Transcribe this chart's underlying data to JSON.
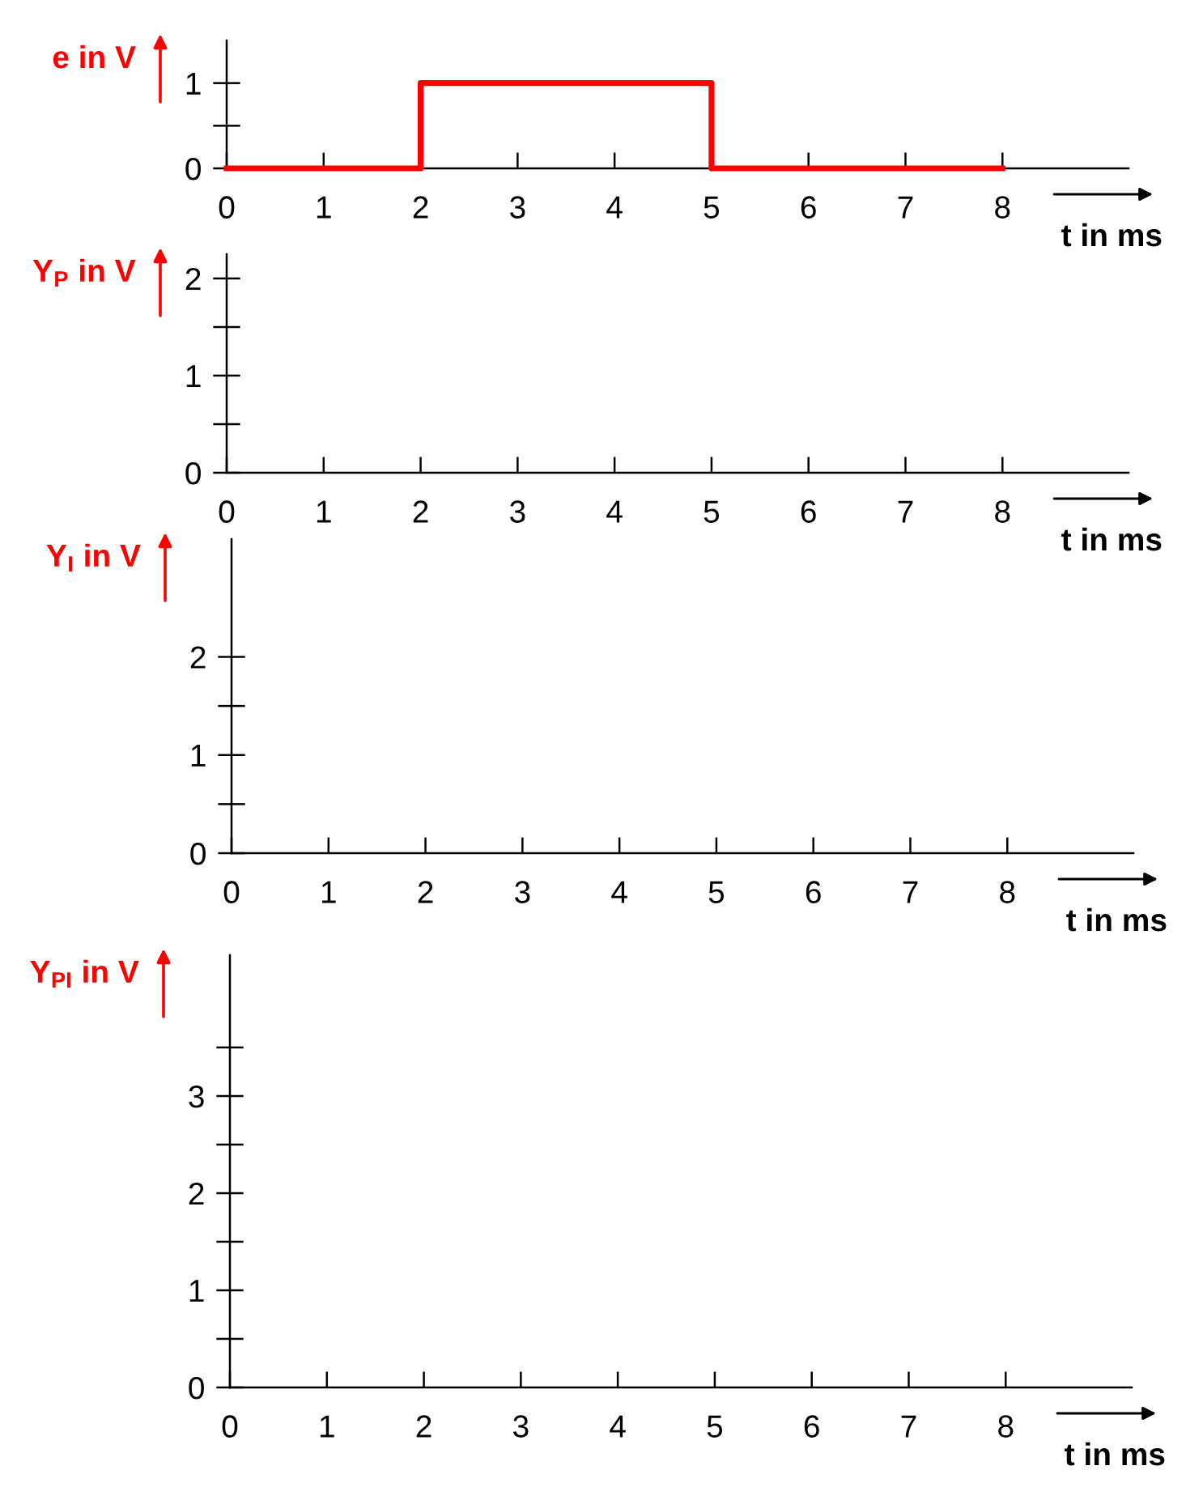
{
  "chart_data": [
    {
      "type": "step",
      "x": [
        0,
        2,
        5,
        8
      ],
      "values": [
        0,
        1,
        0,
        0
      ],
      "color": "#ff0000",
      "xlabel": "t in ms",
      "ylabel": "e in V",
      "xlim": [
        0,
        9.3
      ],
      "xticks": [
        0,
        1,
        2,
        3,
        4,
        5,
        6,
        7,
        8
      ],
      "ylim": [
        0,
        1.5
      ],
      "yticks": [
        0,
        {
          "value": 0.5,
          "label": null
        },
        1
      ]
    },
    {
      "type": "line",
      "xlabel": "t in ms",
      "ylabel": "Y$_{P}$ in V",
      "xlim": [
        0,
        9.3
      ],
      "xticks": [
        0,
        1,
        2,
        3,
        4,
        5,
        6,
        7,
        8
      ],
      "ylim": [
        0,
        2.25
      ],
      "yticks": [
        0,
        {
          "value": 0.5,
          "label": null
        },
        1,
        {
          "value": 1.5,
          "label": null
        },
        2
      ]
    },
    {
      "type": "line",
      "xlabel": "t in ms",
      "ylabel": "Y$_{I}$ in V",
      "xlim": [
        0,
        9.3
      ],
      "xticks": [
        0,
        1,
        2,
        3,
        4,
        5,
        6,
        7,
        8
      ],
      "ylim": [
        0,
        3.2
      ],
      "yticks": [
        0,
        {
          "value": 0.5,
          "label": null
        },
        1,
        {
          "value": 1.5,
          "label": null
        },
        2
      ]
    },
    {
      "type": "line",
      "xlabel": "t in ms",
      "ylabel": "Y$_{PI}$ in V",
      "xlim": [
        0,
        9.3
      ],
      "xticks": [
        0,
        1,
        2,
        3,
        4,
        5,
        6,
        7,
        8
      ],
      "ylim": [
        0,
        4.45
      ],
      "yticks": [
        0,
        {
          "value": 0.5,
          "label": null
        },
        1,
        {
          "value": 1.5,
          "label": null
        },
        2,
        {
          "value": 2.5,
          "label": null
        },
        3,
        {
          "value": 3.5,
          "label": null
        }
      ]
    }
  ]
}
